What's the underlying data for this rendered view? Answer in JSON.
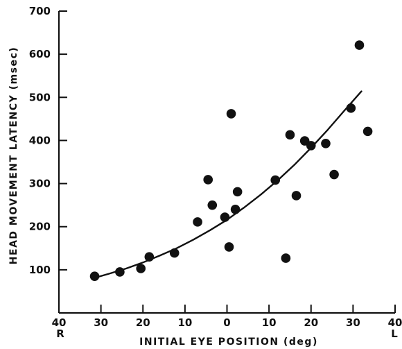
{
  "chart_data": {
    "type": "scatter",
    "title": "",
    "xlabel": "INITIAL EYE POSITION (deg)",
    "ylabel": "HEAD MOVEMENT LATENCY (msec)",
    "x_direction_labels": {
      "left": "R",
      "right": "L"
    },
    "x_axis_signed_range": [
      -40,
      40
    ],
    "x_tick_values": [
      -40,
      -30,
      -20,
      -10,
      0,
      10,
      20,
      30,
      40
    ],
    "x_tick_labels": [
      "40",
      "30",
      "20",
      "10",
      "0",
      "10",
      "20",
      "30",
      "40"
    ],
    "xlim": [
      -40,
      40
    ],
    "ylim": [
      0,
      700
    ],
    "y_tick_values": [
      100,
      200,
      300,
      400,
      500,
      600,
      700
    ],
    "y_tick_labels": [
      "100",
      "200",
      "300",
      "400",
      "500",
      "600",
      "700"
    ],
    "grid": false,
    "legend": "none",
    "points": [
      {
        "x": -31.5,
        "y": 85
      },
      {
        "x": -25.5,
        "y": 95
      },
      {
        "x": -20.5,
        "y": 103
      },
      {
        "x": -18.5,
        "y": 130
      },
      {
        "x": -12.5,
        "y": 139
      },
      {
        "x": -7.0,
        "y": 211
      },
      {
        "x": -4.5,
        "y": 309
      },
      {
        "x": -3.5,
        "y": 250
      },
      {
        "x": -0.5,
        "y": 222
      },
      {
        "x": 0.5,
        "y": 153
      },
      {
        "x": 1.0,
        "y": 462
      },
      {
        "x": 2.0,
        "y": 240
      },
      {
        "x": 2.5,
        "y": 281
      },
      {
        "x": 11.5,
        "y": 308
      },
      {
        "x": 14.0,
        "y": 127
      },
      {
        "x": 15.0,
        "y": 413
      },
      {
        "x": 16.5,
        "y": 272
      },
      {
        "x": 18.5,
        "y": 399
      },
      {
        "x": 20.0,
        "y": 388
      },
      {
        "x": 23.5,
        "y": 393
      },
      {
        "x": 25.5,
        "y": 321
      },
      {
        "x": 29.5,
        "y": 475
      },
      {
        "x": 31.5,
        "y": 621
      },
      {
        "x": 33.5,
        "y": 421
      }
    ],
    "fit_curve": [
      {
        "x": -32,
        "y": 80
      },
      {
        "x": -28,
        "y": 91
      },
      {
        "x": -24,
        "y": 103
      },
      {
        "x": -20,
        "y": 117
      },
      {
        "x": -16,
        "y": 133
      },
      {
        "x": -12,
        "y": 150
      },
      {
        "x": -8,
        "y": 170
      },
      {
        "x": -4,
        "y": 192
      },
      {
        "x": 0,
        "y": 216
      },
      {
        "x": 4,
        "y": 244
      },
      {
        "x": 8,
        "y": 274
      },
      {
        "x": 12,
        "y": 307
      },
      {
        "x": 16,
        "y": 343
      },
      {
        "x": 20,
        "y": 383
      },
      {
        "x": 24,
        "y": 425
      },
      {
        "x": 28,
        "y": 470
      },
      {
        "x": 32,
        "y": 514
      }
    ],
    "colors": {
      "marks": "#111111",
      "background": "#ffffff"
    }
  }
}
